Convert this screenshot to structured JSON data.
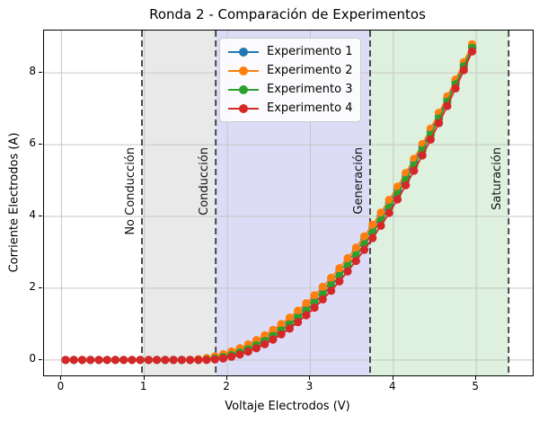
{
  "chart_data": {
    "type": "line",
    "title": "Ronda 2 - Comparación de Experimentos",
    "xlabel": "Voltaje Electrodos (V)",
    "ylabel": "Corriente Electrodos (A)",
    "xlim": [
      -0.21,
      5.68
    ],
    "ylim": [
      -0.43,
      9.18
    ],
    "grid": true,
    "grid_color": "#c6c6c6",
    "x_ticks": [
      0,
      1,
      2,
      3,
      4,
      5
    ],
    "y_ticks": [
      0,
      2,
      4,
      6,
      8
    ],
    "legend_position": "upper center",
    "x": [
      0.05,
      0.15,
      0.25,
      0.35,
      0.45,
      0.55,
      0.65,
      0.75,
      0.85,
      0.95,
      1.05,
      1.15,
      1.25,
      1.35,
      1.45,
      1.55,
      1.65,
      1.75,
      1.85,
      1.95,
      2.05,
      2.15,
      2.25,
      2.35,
      2.45,
      2.55,
      2.65,
      2.75,
      2.85,
      2.95,
      3.05,
      3.15,
      3.25,
      3.35,
      3.45,
      3.55,
      3.65,
      3.75,
      3.85,
      3.95,
      4.05,
      4.15,
      4.25,
      4.35,
      4.45,
      4.55,
      4.65,
      4.75,
      4.85,
      4.95
    ],
    "series": [
      {
        "name": "Experimento 1",
        "color": "#1f77b4",
        "marker": "circle",
        "y": [
          0,
          0,
          0,
          0,
          0,
          0,
          0,
          0,
          0,
          0,
          0,
          0,
          0,
          0,
          0,
          0,
          0.008,
          0.03,
          0.068,
          0.121,
          0.189,
          0.273,
          0.371,
          0.484,
          0.613,
          0.757,
          0.916,
          1.09,
          1.279,
          1.484,
          1.703,
          1.938,
          2.187,
          2.452,
          2.732,
          3.028,
          3.338,
          3.663,
          4.004,
          4.36,
          4.731,
          5.117,
          5.518,
          5.934,
          6.366,
          6.812,
          7.274,
          7.751,
          8.243,
          8.75
        ]
      },
      {
        "name": "Experimento 2",
        "color": "#ff7f0e",
        "marker": "circle",
        "y": [
          0,
          0,
          0,
          0,
          0,
          0,
          0,
          0,
          0,
          0,
          0,
          0,
          0,
          0,
          0,
          0.004,
          0.021,
          0.053,
          0.1,
          0.161,
          0.237,
          0.328,
          0.433,
          0.553,
          0.688,
          0.837,
          1.0,
          1.179,
          1.372,
          1.579,
          1.801,
          2.038,
          2.29,
          2.556,
          2.836,
          3.131,
          3.441,
          3.766,
          4.105,
          4.459,
          4.827,
          5.21,
          5.607,
          6.02,
          6.446,
          6.888,
          7.344,
          7.814,
          8.3,
          8.8
        ]
      },
      {
        "name": "Experimento 3",
        "color": "#2ca02c",
        "marker": "circle",
        "y": [
          0,
          0,
          0,
          0,
          0,
          0,
          0,
          0,
          0,
          0,
          0,
          0,
          0,
          0,
          0,
          0,
          0,
          0.011,
          0.038,
          0.081,
          0.139,
          0.213,
          0.303,
          0.409,
          0.531,
          0.668,
          0.821,
          0.99,
          1.175,
          1.375,
          1.592,
          1.824,
          2.071,
          2.335,
          2.614,
          2.91,
          3.221,
          3.547,
          3.89,
          4.248,
          4.622,
          5.012,
          5.418,
          5.84,
          6.277,
          6.73,
          7.199,
          7.683,
          8.184,
          8.7
        ]
      },
      {
        "name": "Experimento 4",
        "color": "#d62728",
        "marker": "circle",
        "y": [
          0,
          0,
          0,
          0,
          0,
          0,
          0,
          0,
          0,
          0,
          0,
          0,
          0,
          0,
          0,
          0,
          0,
          0.001,
          0.014,
          0.044,
          0.09,
          0.152,
          0.232,
          0.327,
          0.439,
          0.568,
          0.713,
          0.875,
          1.053,
          1.247,
          1.458,
          1.686,
          1.93,
          2.19,
          2.467,
          2.76,
          3.07,
          3.397,
          3.74,
          4.099,
          4.475,
          4.867,
          5.276,
          5.702,
          6.143,
          6.602,
          7.077,
          7.568,
          8.076,
          8.6
        ]
      }
    ],
    "vlines": {
      "x": [
        0.97,
        1.86,
        3.72,
        5.39
      ],
      "style": "dashed",
      "color": "#3a3a3a"
    },
    "annotations": [
      {
        "text": "No Conducción",
        "x": 0.97
      },
      {
        "text": "Conducción",
        "x": 1.86
      },
      {
        "text": "Generación",
        "x": 3.72
      },
      {
        "text": "Saturación",
        "x": 5.39
      }
    ],
    "spans": [
      {
        "from": 0.97,
        "to": 1.86,
        "color": "#e9e9e9"
      },
      {
        "from": 1.86,
        "to": 3.72,
        "color": "#dcdcf7"
      },
      {
        "from": 3.72,
        "to": 5.39,
        "color": "#def0de"
      }
    ]
  }
}
